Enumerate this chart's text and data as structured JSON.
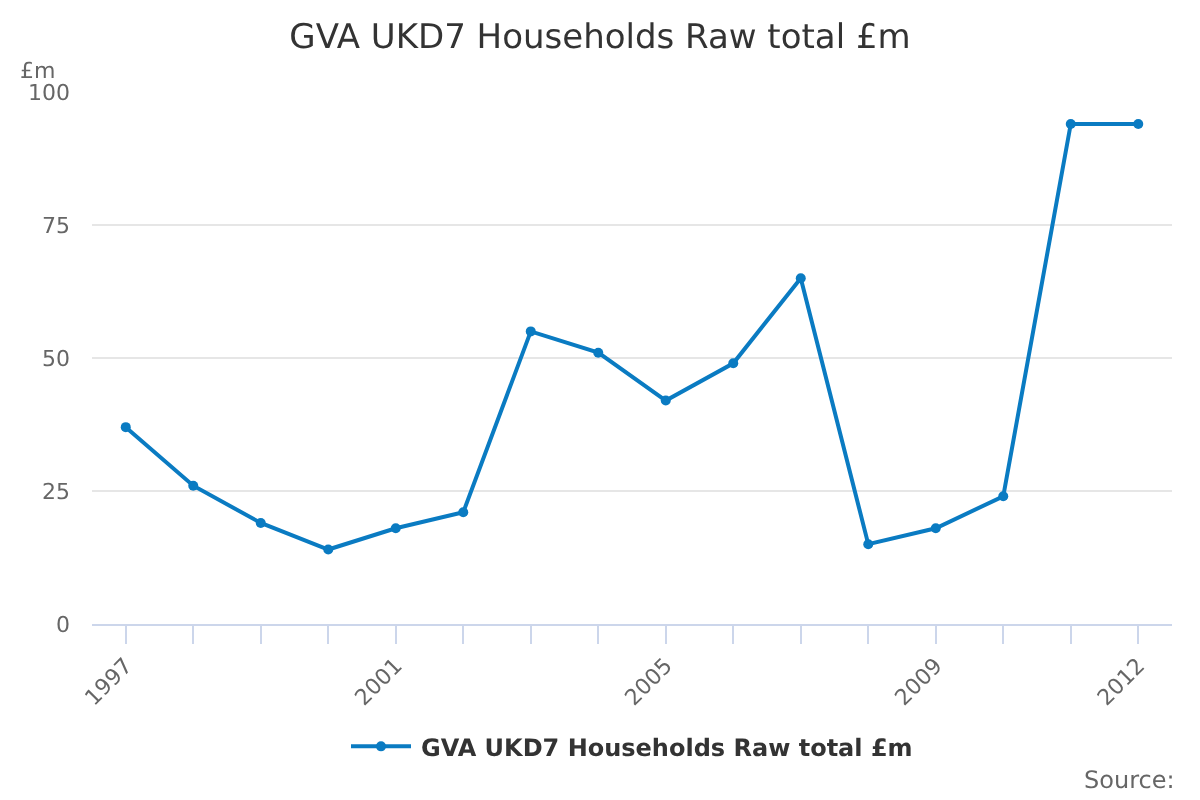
{
  "chart_data": {
    "type": "line",
    "title": "GVA UKD7 Households Raw total £m",
    "ylabel": "£m",
    "categories": [
      "1997",
      null,
      null,
      null,
      "2001",
      null,
      null,
      null,
      "2005",
      null,
      null,
      null,
      "2009",
      null,
      null,
      "2012"
    ],
    "series": [
      {
        "name": "GVA UKD7 Households Raw total £m",
        "color": "#0a7bc2",
        "values": [
          37,
          26,
          19,
          14,
          18,
          21,
          55,
          51,
          42,
          49,
          65,
          15,
          18,
          24,
          94,
          94
        ]
      }
    ],
    "ylim": [
      0,
      100
    ],
    "yticks": [
      0,
      25,
      50,
      75,
      100
    ],
    "grid": "y",
    "legend": "bottom",
    "marker": "circle",
    "line_style": "solid",
    "annotations": [
      "Source:"
    ]
  }
}
